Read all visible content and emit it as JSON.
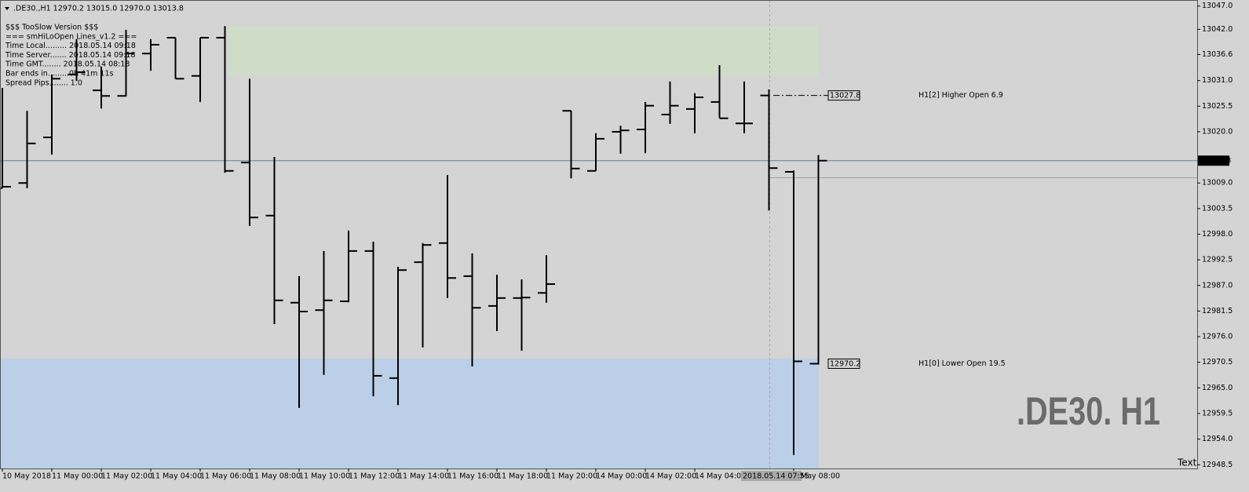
{
  "chart_data": {
    "type": "ohlc",
    "header": ".DE30.,H1  12970.2 13015.0 12970.0 13013.8",
    "info_lines": [
      "$$$ TooSlow Version $$$",
      "=== smHiLoOpen Lines_v1.2 ===",
      "Time Local......... 2018.05.14 09:18",
      "Time Server....... 2018.05.14 09:18",
      "Time GMT........ 2018.05.14 08:18",
      "Bar ends in.........0h 41m 11s",
      "Spread Pips........ 1.0"
    ],
    "watermark": ".DE30. H1",
    "corner_text": "Text",
    "crosshair_label": "2018.05.14 07:55",
    "categories": [
      "10 May 2018",
      null,
      "11 May 00:00",
      null,
      "11 May 02:00",
      null,
      "11 May 04:00",
      null,
      "11 May 06:00",
      null,
      "11 May 08:00",
      null,
      "11 May 10:00",
      null,
      "11 May 12:00",
      null,
      "11 May 14:00",
      null,
      "11 May 16:00",
      null,
      "11 May 18:00",
      null,
      "11 May 20:00",
      null,
      "14 May 00:00",
      null,
      "14 May 02:00",
      null,
      "14 May 04:00",
      null,
      null,
      null,
      "May 08:00",
      null
    ],
    "open": [
      13007.9,
      13009.0,
      13018.8,
      13032.3,
      13028.9,
      13027.7,
      13036.8,
      13040.2,
      13032.0,
      13040.2,
      13013.4,
      13002.0,
      12983.3,
      12981.7,
      12983.6,
      12994.4,
      12967.1,
      12992.0,
      12996.1,
      12989.0,
      12982.6,
      12984.3,
      12985.4,
      13024.5,
      13011.6,
      13020.0,
      13020.5,
      13023.7,
      13024.9,
      13026.4,
      13021.8,
      13027.8,
      13011.4,
      12970.2
    ],
    "high": [
      13029.4,
      13024.5,
      13032.3,
      13039.9,
      13034.0,
      13041.9,
      13039.9,
      13040.2,
      13040.2,
      13042.7,
      13031.4,
      13014.6,
      12989.0,
      12994.4,
      12998.8,
      12996.4,
      12991.0,
      12996.1,
      13010.7,
      12993.9,
      12989.3,
      12988.3,
      12993.5,
      13024.5,
      13019.7,
      13021.3,
      13026.4,
      13030.8,
      13028.3,
      13034.3,
      13030.8,
      13029.1,
      13011.7,
      13015.0
    ],
    "low": [
      13007.9,
      13007.9,
      13015.1,
      13030.9,
      13025.0,
      13027.6,
      13033.1,
      13031.4,
      13026.4,
      13011.2,
      12999.8,
      12978.7,
      12960.7,
      12967.8,
      12983.4,
      12963.2,
      12961.3,
      12973.7,
      12984.3,
      12969.6,
      12977.2,
      12973.0,
      12983.3,
      13010.0,
      13011.6,
      13015.3,
      13015.4,
      13021.7,
      13019.7,
      13023.0,
      13019.7,
      13003.1,
      12950.6,
      12970.0
    ],
    "close": [
      13008.2,
      13017.5,
      13031.4,
      13032.8,
      13027.7,
      13036.8,
      13038.7,
      13031.4,
      13040.2,
      13011.6,
      13001.6,
      12983.8,
      12981.4,
      12983.8,
      12994.4,
      12967.6,
      12990.3,
      12995.7,
      12988.6,
      12982.2,
      12984.3,
      12984.4,
      12987.3,
      13012.1,
      13018.5,
      13020.3,
      13025.6,
      13025.6,
      13027.4,
      13022.9,
      13021.8,
      13012.2,
      12970.7,
      13013.8
    ],
    "color": "#000000",
    "ylim": [
      12947.7,
      13048.3
    ],
    "yticks": [
      {
        "value": 13047,
        "label": "13047.0"
      },
      {
        "value": 13042,
        "label": "13042.0"
      },
      13036.6,
      {
        "value": 13031,
        "label": "13031.0"
      },
      13025.5,
      {
        "value": 13020,
        "label": "13020.0"
      },
      {
        "value": 13009,
        "label": "13009.0"
      },
      13003.5,
      {
        "value": 12998,
        "label": "12998.0"
      },
      12992.5,
      {
        "value": 12987,
        "label": "12987.0"
      },
      12981.5,
      {
        "value": 12976,
        "label": "12976.0"
      },
      12970.5,
      {
        "value": 12965,
        "label": "12965.0"
      },
      12959.5,
      {
        "value": 12954,
        "label": "12954.0"
      },
      12948.5
    ],
    "current_price": 13013.8,
    "current_price_color": "#6a7f96",
    "zones": [
      {
        "high": 13042.7,
        "low": 13031.9,
        "color": "#cfdcc8"
      },
      {
        "high": 12971.3,
        "low": 12947.7,
        "color": "#bccfe8"
      }
    ],
    "levels": [
      {
        "value": 13027.8,
        "text": "H1[2] Higher Open 6.9"
      },
      {
        "value": 12970.2,
        "text": "H1[0] Lower Open 19.5"
      }
    ]
  }
}
